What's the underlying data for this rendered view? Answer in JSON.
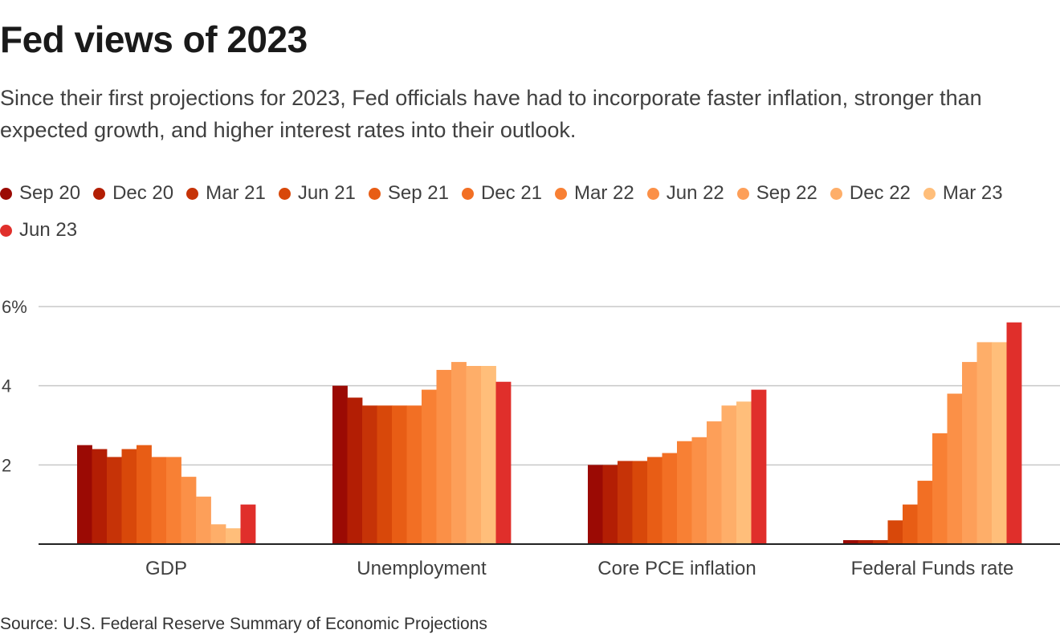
{
  "title": "Fed views of 2023",
  "subtitle": "Since their first projections for 2023, Fed officials have had to incorporate faster inflation, stronger than expected growth, and higher interest rates into their outlook.",
  "source": "Source: U.S. Federal Reserve Summary of Economic Projections",
  "chart_data": {
    "type": "bar",
    "categories": [
      "GDP",
      "Unemployment",
      "Core PCE inflation",
      "Federal Funds rate"
    ],
    "ylim": [
      0,
      6
    ],
    "yticks": [
      {
        "value": 2,
        "label": "2"
      },
      {
        "value": 4,
        "label": "4"
      },
      {
        "value": 6,
        "label": "6%"
      }
    ],
    "grid": true,
    "legend_position": "top",
    "series": [
      {
        "name": "Sep 20",
        "color": "#9b0a04",
        "values": [
          2.5,
          4.0,
          2.0,
          0.1
        ]
      },
      {
        "name": "Dec 20",
        "color": "#b31e04",
        "values": [
          2.4,
          3.7,
          2.0,
          0.1
        ]
      },
      {
        "name": "Mar 21",
        "color": "#c63307",
        "values": [
          2.2,
          3.5,
          2.1,
          0.1
        ]
      },
      {
        "name": "Jun 21",
        "color": "#d8480a",
        "values": [
          2.4,
          3.5,
          2.1,
          0.6
        ]
      },
      {
        "name": "Sep 21",
        "color": "#e85d15",
        "values": [
          2.5,
          3.5,
          2.2,
          1.0
        ]
      },
      {
        "name": "Dec 21",
        "color": "#f26f24",
        "values": [
          2.2,
          3.5,
          2.3,
          1.6
        ]
      },
      {
        "name": "Mar 22",
        "color": "#f88034",
        "values": [
          2.2,
          3.9,
          2.6,
          2.8
        ]
      },
      {
        "name": "Jun 22",
        "color": "#fb9047",
        "values": [
          1.7,
          4.4,
          2.7,
          3.8
        ]
      },
      {
        "name": "Sep 22",
        "color": "#fd9f59",
        "values": [
          1.2,
          4.6,
          3.1,
          4.6
        ]
      },
      {
        "name": "Dec 22",
        "color": "#feae69",
        "values": [
          0.5,
          4.5,
          3.5,
          5.1
        ]
      },
      {
        "name": "Mar 23",
        "color": "#ffbe7a",
        "values": [
          0.4,
          4.5,
          3.6,
          5.1
        ]
      },
      {
        "name": "Jun 23",
        "color": "#e02f2b",
        "values": [
          1.0,
          4.1,
          3.9,
          5.6
        ]
      }
    ]
  }
}
